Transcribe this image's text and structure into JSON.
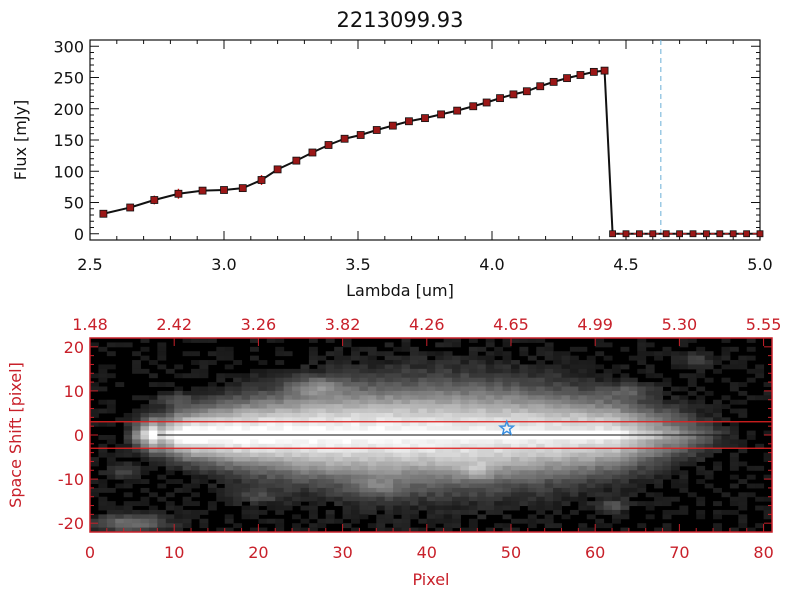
{
  "chart_data": [
    {
      "type": "line",
      "title": "2213099.93",
      "xlabel": "Lambda [um]",
      "ylabel": "Flux [mJy]",
      "xlim": [
        2.5,
        5.0
      ],
      "ylim": [
        -10,
        310
      ],
      "xticks": [
        "2.5",
        "3.0",
        "3.5",
        "4.0",
        "4.5",
        "5.0"
      ],
      "yticks": [
        "0",
        "50",
        "100",
        "150",
        "200",
        "250",
        "300"
      ],
      "cutoff_x": 4.63,
      "series": [
        {
          "x": [
            2.55,
            2.65,
            2.74,
            2.83,
            2.92,
            3.0,
            3.07,
            3.14,
            3.2,
            3.27,
            3.33,
            3.39,
            3.45,
            3.51,
            3.57,
            3.63,
            3.69,
            3.75,
            3.81,
            3.87,
            3.93,
            3.98,
            4.03,
            4.08,
            4.13,
            4.18,
            4.23,
            4.28,
            4.33,
            4.38,
            4.42
          ],
          "y": [
            32,
            42,
            54,
            64,
            69,
            70,
            73,
            86,
            103,
            117,
            130,
            142,
            152,
            158,
            166,
            173,
            180,
            185,
            191,
            197,
            204,
            210,
            217,
            223,
            228,
            236,
            243,
            249,
            254,
            259,
            261
          ],
          "yerr": [
            3,
            3,
            7,
            8,
            3,
            3,
            3,
            8,
            4,
            4,
            3,
            3,
            3,
            3,
            3,
            3,
            3,
            3,
            3,
            3,
            3,
            3,
            3,
            3,
            3,
            3,
            3,
            3,
            3,
            3,
            3
          ]
        },
        {
          "x": [
            4.45,
            4.5,
            4.55,
            4.6,
            4.65,
            4.7,
            4.75,
            4.8,
            4.85,
            4.9,
            4.95,
            5.0
          ],
          "y": [
            0,
            0,
            0,
            0,
            0,
            0,
            0,
            0,
            0,
            0,
            0,
            0
          ]
        }
      ]
    },
    {
      "type": "heatmap",
      "xlabel": "Pixel",
      "ylabel": "Space Shift [pixel]",
      "xlim": [
        0,
        81
      ],
      "ylim": [
        -22,
        22
      ],
      "xticks": [
        "0",
        "10",
        "20",
        "30",
        "40",
        "50",
        "60",
        "70",
        "80"
      ],
      "yticks": [
        "-20",
        "-10",
        "0",
        "10",
        "20"
      ],
      "top_axis_ticks": [
        "1.48",
        "2.42",
        "3.26",
        "3.82",
        "4.26",
        "4.65",
        "4.99",
        "5.30",
        "5.55"
      ],
      "aperture_lines": [
        3,
        -3
      ],
      "center_line": 0,
      "marker": {
        "x": 49.5,
        "y": 1.5,
        "symbol": "star"
      },
      "colors": {
        "axis_accent": "#c8202a",
        "marker": "#3a8fe0",
        "aperture": "#e02020",
        "cutoff_line": "#6aaed6"
      }
    }
  ]
}
